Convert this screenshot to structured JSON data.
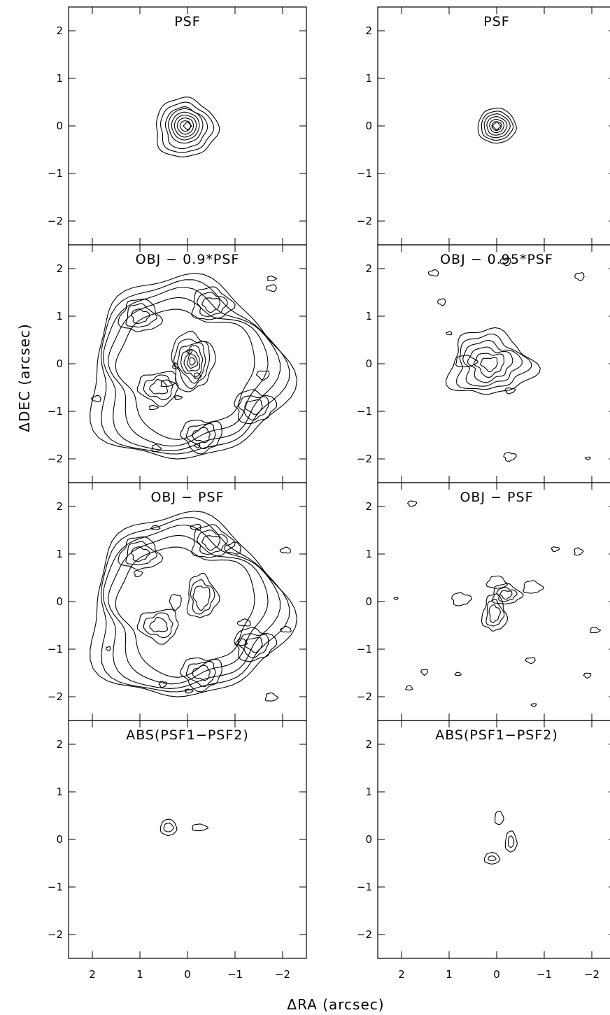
{
  "chart_data": {
    "type": "contour",
    "xlabel": "ΔRA (arcsec)",
    "ylabel": "ΔDEC (arcsec)",
    "xlim": [
      2.5,
      -2.5
    ],
    "ylim": [
      -2.5,
      2.5
    ],
    "xticks": [
      2,
      1,
      0,
      -1,
      -2
    ],
    "yticks": [
      2,
      1,
      0,
      -1,
      -2
    ],
    "xtick_labels": [
      "2",
      "1",
      "0",
      "−1",
      "−2"
    ],
    "ytick_labels": [
      "2",
      "1",
      "0",
      "−1",
      "−2"
    ],
    "columns": [
      {
        "panels": [
          {
            "title": "PSF",
            "kind": "psf-wide",
            "peak": [
              0,
              0
            ]
          },
          {
            "title": "OBJ − 0.9*PSF",
            "kind": "galaxy-strong",
            "peak": [
              -0.1,
              0.05
            ]
          },
          {
            "title": "OBJ − PSF",
            "kind": "galaxy-hole",
            "peak": [
              0.15,
              0.0
            ]
          },
          {
            "title": "ABS(PSF1−PSF2)",
            "kind": "diff-a",
            "peak": [
              0.4,
              0.25
            ]
          }
        ]
      },
      {
        "panels": [
          {
            "title": "PSF",
            "kind": "psf-narrow",
            "peak": [
              0,
              0
            ]
          },
          {
            "title": "OBJ − 0.95*PSF",
            "kind": "galaxy-weak",
            "peak": [
              0.05,
              0.05
            ]
          },
          {
            "title": "OBJ − PSF",
            "kind": "galaxy-residual",
            "peak": [
              0.05,
              -0.25
            ]
          },
          {
            "title": "ABS(PSF1−PSF2)",
            "kind": "diff-b",
            "peak": [
              -0.3,
              -0.05
            ]
          }
        ]
      }
    ]
  }
}
